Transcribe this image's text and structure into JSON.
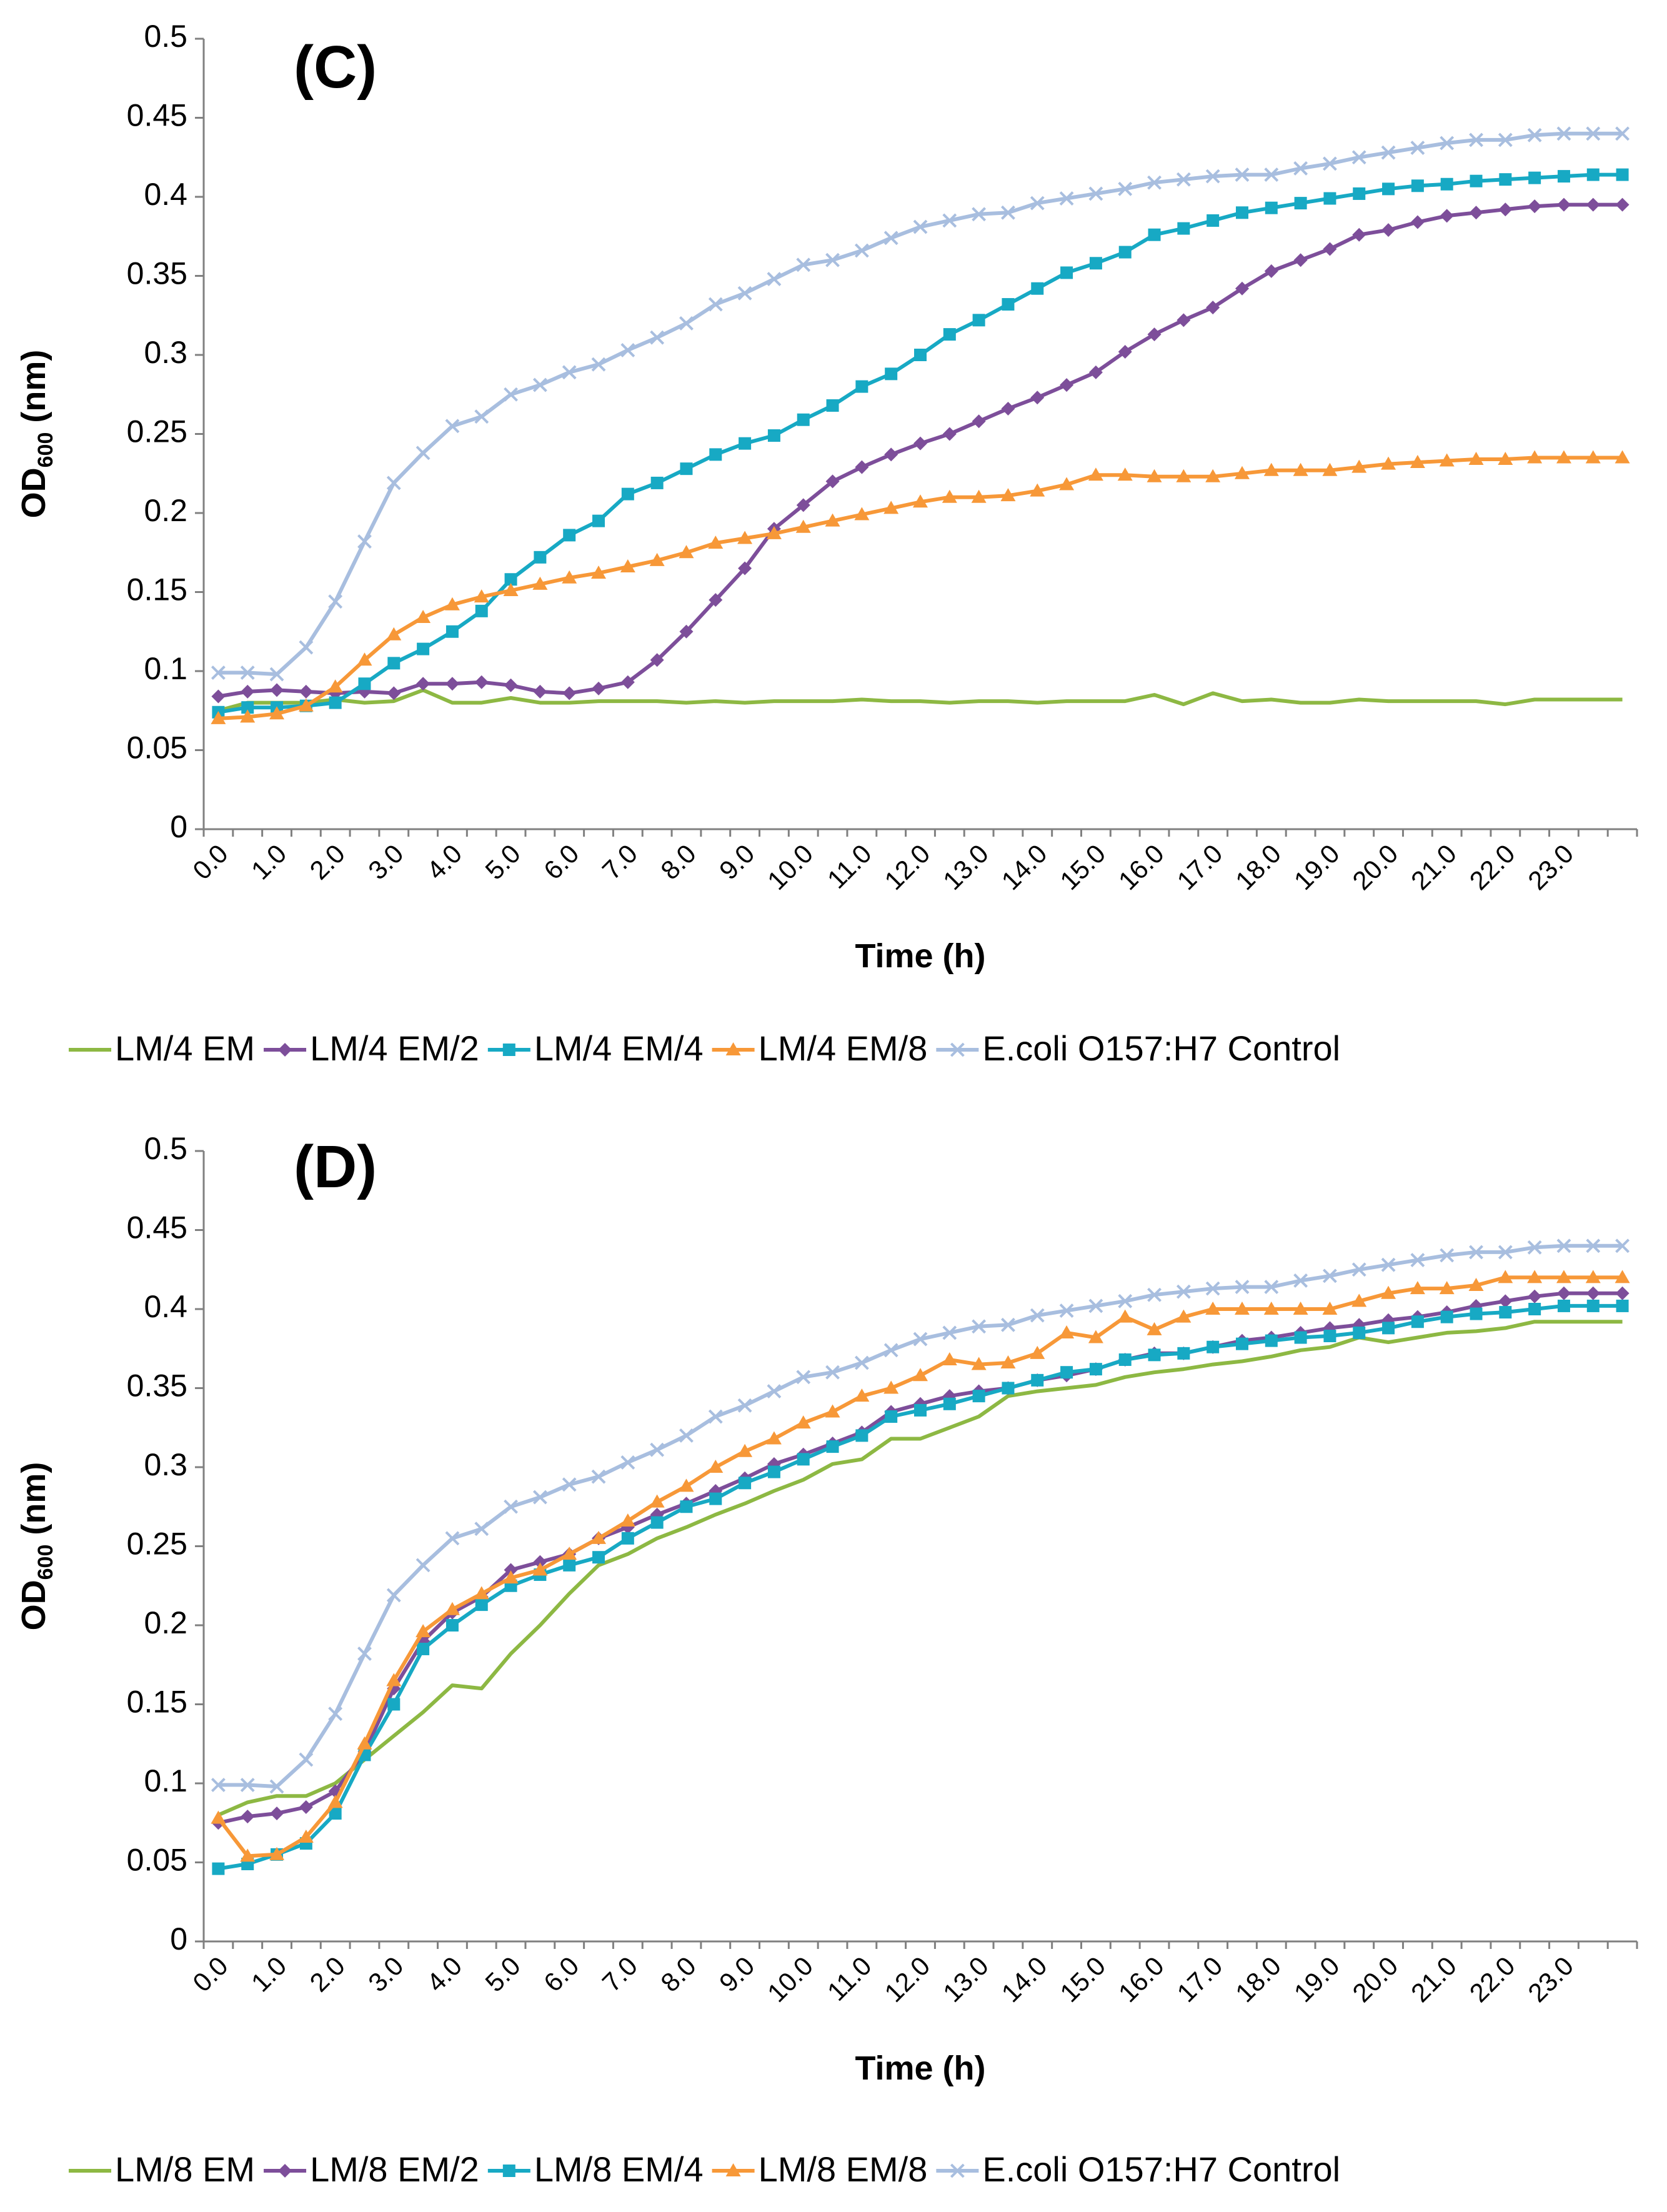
{
  "colors": {
    "green": "#8DB843",
    "purple": "#7D4E9A",
    "teal": "#17A9C4",
    "orange": "#F79838",
    "lightblue": "#A8BEDF",
    "axis": "#808080",
    "text": "#000000"
  },
  "chart_data": [
    {
      "type": "line",
      "panel_label": "(C)",
      "xlabel": "Time (h)",
      "ylabel_main": "OD",
      "ylabel_sub": "600",
      "ylabel_unit": " (nm)",
      "ylim": [
        0,
        0.5
      ],
      "yticks": [
        "0",
        "0.05",
        "0.1",
        "0.15",
        "0.2",
        "0.25",
        "0.3",
        "0.35",
        "0.4",
        "0.45",
        "0.5"
      ],
      "xticks": [
        "0.0",
        "1.0",
        "2.0",
        "3.0",
        "4.0",
        "5.0",
        "6.0",
        "7.0",
        "8.0",
        "9.0",
        "10.0",
        "11.0",
        "12.0",
        "13.0",
        "14.0",
        "15.0",
        "16.0",
        "17.0",
        "18.0",
        "19.0",
        "20.0",
        "21.0",
        "22.0",
        "23.0"
      ],
      "n_points": 49,
      "series": [
        {
          "name": "LM/4 EM",
          "color": "green",
          "marker": "none",
          "values": [
            0.075,
            0.08,
            0.08,
            0.08,
            0.082,
            0.08,
            0.081,
            0.088,
            0.08,
            0.08,
            0.083,
            0.08,
            0.08,
            0.081,
            0.081,
            0.081,
            0.08,
            0.081,
            0.08,
            0.081,
            0.081,
            0.081,
            0.082,
            0.081,
            0.081,
            0.08,
            0.081,
            0.081,
            0.08,
            0.081,
            0.081,
            0.081,
            0.085,
            0.079,
            0.086,
            0.081,
            0.082,
            0.08,
            0.08,
            0.082,
            0.081,
            0.081,
            0.081,
            0.081,
            0.079,
            0.082,
            0.082,
            0.082,
            0.082
          ]
        },
        {
          "name": "LM/4 EM/2",
          "color": "purple",
          "marker": "diamond",
          "values": [
            0.084,
            0.087,
            0.088,
            0.087,
            0.086,
            0.087,
            0.086,
            0.092,
            0.092,
            0.093,
            0.091,
            0.087,
            0.086,
            0.089,
            0.093,
            0.107,
            0.125,
            0.145,
            0.165,
            0.19,
            0.205,
            0.22,
            0.229,
            0.237,
            0.244,
            0.25,
            0.258,
            0.266,
            0.273,
            0.281,
            0.289,
            0.302,
            0.313,
            0.322,
            0.33,
            0.342,
            0.353,
            0.36,
            0.367,
            0.376,
            0.379,
            0.384,
            0.388,
            0.39,
            0.392,
            0.394,
            0.395,
            0.395,
            0.395
          ]
        },
        {
          "name": "LM/4 EM/4",
          "color": "teal",
          "marker": "square",
          "values": [
            0.074,
            0.077,
            0.077,
            0.078,
            0.08,
            0.092,
            0.105,
            0.114,
            0.125,
            0.138,
            0.158,
            0.172,
            0.186,
            0.195,
            0.212,
            0.219,
            0.228,
            0.237,
            0.244,
            0.249,
            0.259,
            0.268,
            0.28,
            0.288,
            0.3,
            0.313,
            0.322,
            0.332,
            0.342,
            0.352,
            0.358,
            0.365,
            0.376,
            0.38,
            0.385,
            0.39,
            0.393,
            0.396,
            0.399,
            0.402,
            0.405,
            0.407,
            0.408,
            0.41,
            0.411,
            0.412,
            0.413,
            0.414,
            0.414
          ]
        },
        {
          "name": "LM/4 EM/8",
          "color": "orange",
          "marker": "triangle",
          "values": [
            0.07,
            0.071,
            0.073,
            0.078,
            0.09,
            0.107,
            0.123,
            0.134,
            0.142,
            0.147,
            0.151,
            0.155,
            0.159,
            0.162,
            0.166,
            0.17,
            0.175,
            0.181,
            0.184,
            0.187,
            0.191,
            0.195,
            0.199,
            0.203,
            0.207,
            0.21,
            0.21,
            0.211,
            0.214,
            0.218,
            0.224,
            0.224,
            0.223,
            0.223,
            0.223,
            0.225,
            0.227,
            0.227,
            0.227,
            0.229,
            0.231,
            0.232,
            0.233,
            0.234,
            0.234,
            0.235,
            0.235,
            0.235,
            0.235
          ]
        },
        {
          "name": "E.coli O157:H7 Control",
          "color": "lightblue",
          "marker": "x",
          "values": [
            0.099,
            0.099,
            0.098,
            0.115,
            0.144,
            0.182,
            0.219,
            0.238,
            0.255,
            0.261,
            0.275,
            0.281,
            0.289,
            0.294,
            0.303,
            0.311,
            0.32,
            0.332,
            0.339,
            0.348,
            0.357,
            0.36,
            0.366,
            0.374,
            0.381,
            0.385,
            0.389,
            0.39,
            0.396,
            0.399,
            0.402,
            0.405,
            0.409,
            0.411,
            0.413,
            0.414,
            0.414,
            0.418,
            0.421,
            0.425,
            0.428,
            0.431,
            0.434,
            0.436,
            0.436,
            0.439,
            0.44,
            0.44,
            0.44
          ]
        }
      ],
      "legend": {
        "position": "bottom"
      }
    },
    {
      "type": "line",
      "panel_label": "(D)",
      "xlabel": "Time (h)",
      "ylabel_main": "OD",
      "ylabel_sub": "600",
      "ylabel_unit": " (nm)",
      "ylim": [
        0,
        0.5
      ],
      "yticks": [
        "0",
        "0.05",
        "0.1",
        "0.15",
        "0.2",
        "0.25",
        "0.3",
        "0.35",
        "0.4",
        "0.45",
        "0.5"
      ],
      "xticks": [
        "0.0",
        "1.0",
        "2.0",
        "3.0",
        "4.0",
        "5.0",
        "6.0",
        "7.0",
        "8.0",
        "9.0",
        "10.0",
        "11.0",
        "12.0",
        "13.0",
        "14.0",
        "15.0",
        "16.0",
        "17.0",
        "18.0",
        "19.0",
        "20.0",
        "21.0",
        "22.0",
        "23.0"
      ],
      "n_points": 49,
      "series": [
        {
          "name": "LM/8 EM",
          "color": "green",
          "marker": "none",
          "values": [
            0.08,
            0.088,
            0.092,
            0.092,
            0.1,
            0.115,
            0.13,
            0.145,
            0.162,
            0.16,
            0.182,
            0.2,
            0.22,
            0.238,
            0.245,
            0.255,
            0.262,
            0.27,
            0.277,
            0.285,
            0.292,
            0.302,
            0.305,
            0.318,
            0.318,
            0.325,
            0.332,
            0.345,
            0.348,
            0.35,
            0.352,
            0.357,
            0.36,
            0.362,
            0.365,
            0.367,
            0.37,
            0.374,
            0.376,
            0.382,
            0.379,
            0.382,
            0.385,
            0.386,
            0.388,
            0.392,
            0.392,
            0.392,
            0.392
          ]
        },
        {
          "name": "LM/8 EM/2",
          "color": "purple",
          "marker": "diamond",
          "values": [
            0.075,
            0.079,
            0.081,
            0.085,
            0.095,
            0.12,
            0.16,
            0.19,
            0.208,
            0.218,
            0.235,
            0.24,
            0.245,
            0.255,
            0.262,
            0.27,
            0.277,
            0.285,
            0.293,
            0.302,
            0.308,
            0.315,
            0.322,
            0.335,
            0.34,
            0.345,
            0.348,
            0.35,
            0.355,
            0.358,
            0.362,
            0.368,
            0.372,
            0.372,
            0.376,
            0.38,
            0.382,
            0.385,
            0.388,
            0.39,
            0.393,
            0.395,
            0.398,
            0.402,
            0.405,
            0.408,
            0.41,
            0.41,
            0.41
          ]
        },
        {
          "name": "LM/8 EM/4",
          "color": "teal",
          "marker": "square",
          "values": [
            0.046,
            0.049,
            0.055,
            0.062,
            0.081,
            0.118,
            0.15,
            0.185,
            0.2,
            0.213,
            0.225,
            0.232,
            0.238,
            0.243,
            0.255,
            0.265,
            0.275,
            0.28,
            0.29,
            0.297,
            0.305,
            0.313,
            0.32,
            0.332,
            0.336,
            0.34,
            0.345,
            0.35,
            0.355,
            0.36,
            0.362,
            0.368,
            0.371,
            0.372,
            0.376,
            0.378,
            0.38,
            0.382,
            0.383,
            0.385,
            0.388,
            0.392,
            0.395,
            0.397,
            0.398,
            0.4,
            0.402,
            0.402,
            0.402
          ]
        },
        {
          "name": "LM/8 EM/8",
          "color": "orange",
          "marker": "triangle",
          "values": [
            0.078,
            0.054,
            0.055,
            0.066,
            0.088,
            0.125,
            0.165,
            0.196,
            0.21,
            0.22,
            0.23,
            0.235,
            0.245,
            0.255,
            0.266,
            0.278,
            0.288,
            0.3,
            0.31,
            0.318,
            0.328,
            0.335,
            0.345,
            0.35,
            0.358,
            0.368,
            0.365,
            0.366,
            0.372,
            0.385,
            0.382,
            0.395,
            0.387,
            0.395,
            0.4,
            0.4,
            0.4,
            0.4,
            0.4,
            0.405,
            0.41,
            0.413,
            0.413,
            0.415,
            0.42,
            0.42,
            0.42,
            0.42,
            0.42
          ]
        },
        {
          "name": "E.coli O157:H7 Control",
          "color": "lightblue",
          "marker": "x",
          "values": [
            0.099,
            0.099,
            0.098,
            0.115,
            0.144,
            0.182,
            0.219,
            0.238,
            0.255,
            0.261,
            0.275,
            0.281,
            0.289,
            0.294,
            0.303,
            0.311,
            0.32,
            0.332,
            0.339,
            0.348,
            0.357,
            0.36,
            0.366,
            0.374,
            0.381,
            0.385,
            0.389,
            0.39,
            0.396,
            0.399,
            0.402,
            0.405,
            0.409,
            0.411,
            0.413,
            0.414,
            0.414,
            0.418,
            0.421,
            0.425,
            0.428,
            0.431,
            0.434,
            0.436,
            0.436,
            0.439,
            0.44,
            0.44,
            0.44
          ]
        }
      ],
      "legend": {
        "position": "bottom"
      }
    }
  ]
}
